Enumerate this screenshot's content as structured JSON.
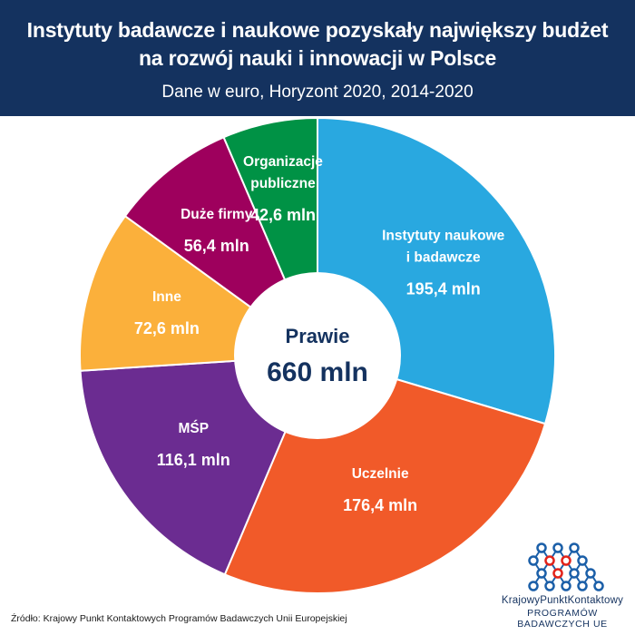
{
  "header": {
    "title_line1": "Instytuty badawcze i naukowe pozyskały największy budżet",
    "title_line2": "na rozwój nauki i innowacji w Polsce",
    "subtitle": "Dane w euro, Horyzont 2020, 2014-2020"
  },
  "chart_data": {
    "type": "pie",
    "unit": "mln",
    "center_label_line1": "Prawie",
    "center_label_line2": "660 mln",
    "slices": [
      {
        "name": "Instytuty naukowe i badawcze",
        "label_lines": [
          "Instytuty naukowe",
          "i badawcze"
        ],
        "value": 195.4,
        "value_label": "195,4 mln",
        "color": "#29a8e0"
      },
      {
        "name": "Uczelnie",
        "label_lines": [
          "Uczelnie"
        ],
        "value": 176.4,
        "value_label": "176,4 mln",
        "color": "#f15a29"
      },
      {
        "name": "MŚP",
        "label_lines": [
          "MŚP"
        ],
        "value": 116.1,
        "value_label": "116,1 mln",
        "color": "#6b2c91"
      },
      {
        "name": "Inne",
        "label_lines": [
          "Inne"
        ],
        "value": 72.6,
        "value_label": "72,6 mln",
        "color": "#fbb03b"
      },
      {
        "name": "Duże firmy",
        "label_lines": [
          "Duże firmy"
        ],
        "value": 56.4,
        "value_label": "56,4 mln",
        "color": "#9e005d"
      },
      {
        "name": "Organizacje publiczne",
        "label_lines": [
          "Organizacje",
          "publiczne"
        ],
        "value": 42.6,
        "value_label": "42,6 mln",
        "color": "#009245"
      }
    ]
  },
  "source": "Źródło: Krajowy Punkt Kontaktowych Programów Badawczych Unii Europejskiej",
  "logo": {
    "line1": "KrajowyPunktKontaktowy",
    "line2": "PROGRAMÓW BADAWCZYCH UE",
    "colors": {
      "blue": "#1b5fa8",
      "red": "#e2231a"
    }
  }
}
